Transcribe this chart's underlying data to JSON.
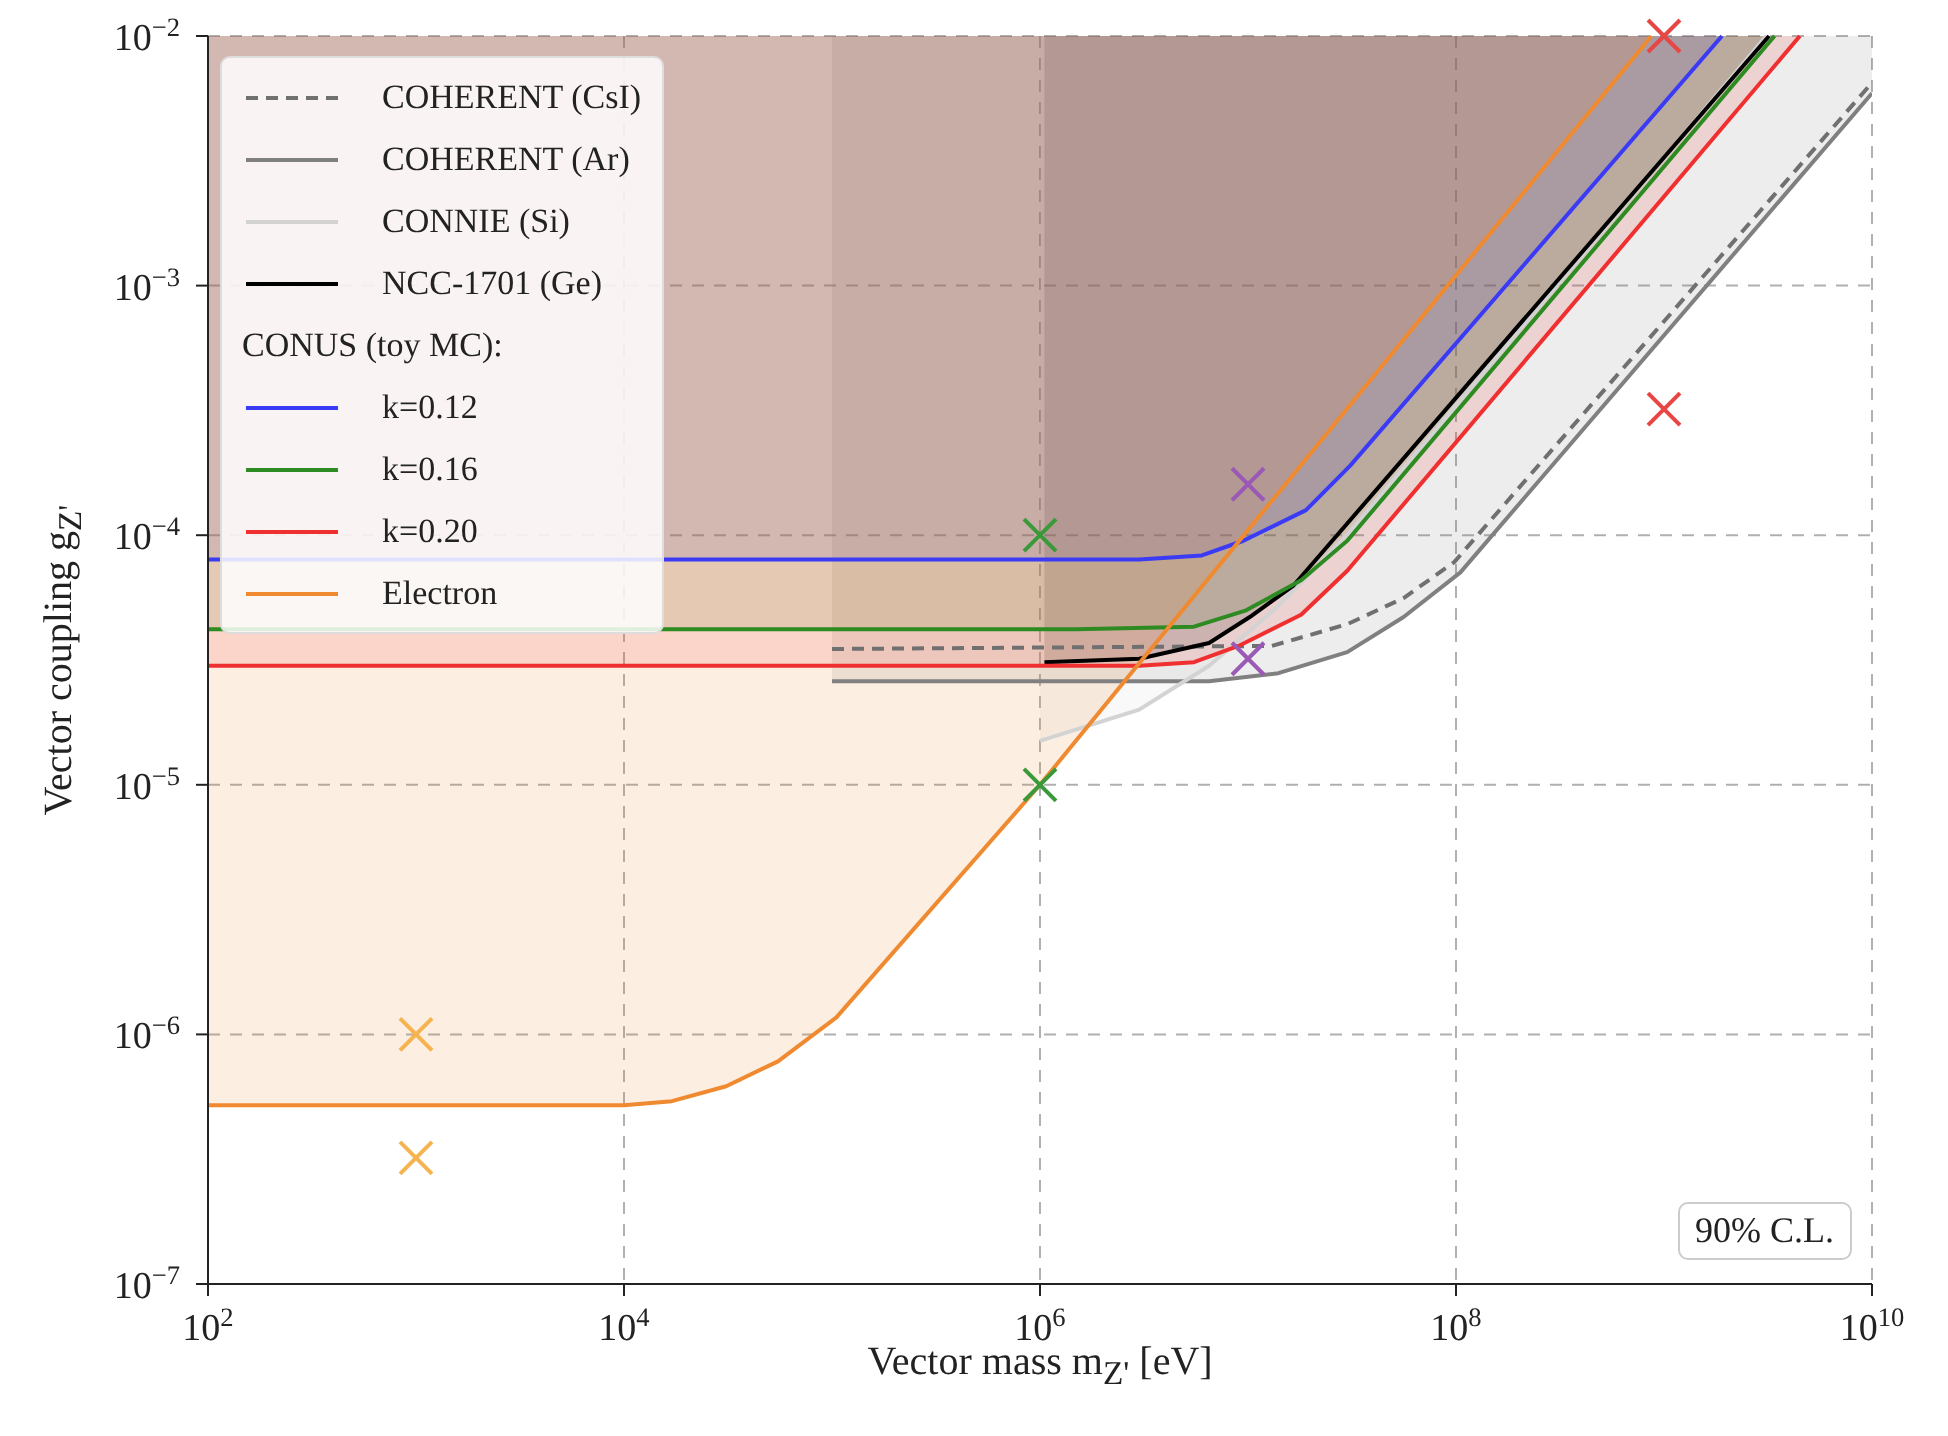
{
  "chart_data": {
    "type": "line",
    "xlabel": "Vector mass m$_{Z'}$ [eV]",
    "ylabel": "Vector coupling g$_{Z'}$",
    "legend_title": "CONUS (toy MC):",
    "log": "xy",
    "grid": true,
    "legend": "top left",
    "xlim": [
      100,
      10000000000
    ],
    "ylim": [
      1e-07,
      0.01
    ],
    "xticks": [
      {
        "value": 100,
        "label": "10$^{2}$"
      },
      {
        "value": 10000,
        "label": "10$^{4}$"
      },
      {
        "value": 1000000,
        "label": "10$^{6}$"
      },
      {
        "value": 100000000,
        "label": "10$^{8}$"
      },
      {
        "value": 10000000000,
        "label": "10$^{10}$"
      }
    ],
    "yticks": [
      {
        "value": 1e-07,
        "label": "10$^{−7}$"
      },
      {
        "value": 1e-06,
        "label": "10$^{−6}$"
      },
      {
        "value": 1e-05,
        "label": "10$^{−5}$"
      },
      {
        "value": 0.0001,
        "label": "10$^{−4}$"
      },
      {
        "value": 0.001,
        "label": "10$^{−3}$"
      },
      {
        "value": 0.01,
        "label": "10$^{−2}$"
      }
    ],
    "annotations": [
      "90% C.L."
    ],
    "series": [
      {
        "name": "COHERENT (CsI)",
        "color": "#707070",
        "line_style": "dashed",
        "x": [
          100000,
          13000000,
          30000000,
          56000000,
          98000000,
          10000000000
        ],
        "values": [
          3.5e-05,
          3.6e-05,
          4.4e-05,
          5.6e-05,
          7.8e-05,
          0.0065
        ]
      },
      {
        "name": "COHERENT (Ar)",
        "color": "#808080",
        "x": [
          100000,
          6500000,
          14000000,
          30000000,
          56000000,
          105000000,
          10000000000
        ],
        "values": [
          2.6e-05,
          2.6e-05,
          2.8e-05,
          3.4e-05,
          4.7e-05,
          7.1e-05,
          0.0059
        ],
        "lower": [
          2.6e-05,
          2.6e-05,
          2.8e-05,
          3.4e-05,
          4.7e-05,
          7.1e-05,
          0.0059
        ],
        "upper": [
          0.01,
          0.01,
          0.01,
          0.01,
          0.01,
          0.01,
          0.01
        ]
      },
      {
        "name": "CONNIE (Si)",
        "color": "#d3d3d3",
        "x": [
          1000000,
          3000000,
          6500000,
          14000000,
          30000000,
          3100000000
        ],
        "values": [
          1.5e-05,
          2e-05,
          3e-05,
          5.2e-05,
          0.0001,
          0.01
        ],
        "lower": [
          1.5e-05,
          2e-05,
          3e-05,
          5.2e-05,
          0.0001,
          0.01
        ],
        "upper": [
          0.01,
          0.01,
          0.01,
          0.01,
          0.01,
          0.01
        ]
      },
      {
        "name": "NCC-1701 (Ge)",
        "color": "#000000",
        "x": [
          1050000,
          3000000,
          6500000,
          10200000,
          16600000,
          3200000000
        ],
        "values": [
          3.1e-05,
          3.2e-05,
          3.7e-05,
          4.7e-05,
          6.3e-05,
          0.01
        ],
        "lower": [
          3.1e-05,
          3.2e-05,
          3.7e-05,
          4.7e-05,
          6.3e-05,
          0.01
        ],
        "upper": [
          0.01,
          0.01,
          0.01,
          0.01,
          0.01,
          0.01
        ]
      },
      {
        "name": "k=0.12",
        "color": "#3b3bf5",
        "x": [
          100,
          3000000,
          6000000,
          9500000,
          19000000,
          31000000,
          1900000000
        ],
        "values": [
          8e-05,
          8e-05,
          8.3e-05,
          9.5e-05,
          0.000126,
          0.00019,
          0.01
        ],
        "lower": [
          8e-05,
          8e-05,
          8.3e-05,
          9.5e-05,
          0.000126,
          0.00019,
          0.01
        ],
        "upper": [
          0.01,
          0.01,
          0.01,
          0.01,
          0.01,
          0.01,
          0.01
        ]
      },
      {
        "name": "k=0.16",
        "color": "#2e8b22",
        "x": [
          100,
          1500000,
          5500000,
          9800000,
          18000000,
          30000000,
          3400000000
        ],
        "values": [
          4.2e-05,
          4.2e-05,
          4.3e-05,
          5e-05,
          6.6e-05,
          9.5e-05,
          0.01
        ],
        "lower": [
          4.2e-05,
          4.2e-05,
          4.3e-05,
          5e-05,
          6.6e-05,
          9.5e-05,
          0.01
        ],
        "upper": [
          0.01,
          0.01,
          0.01,
          0.01,
          0.01,
          0.01,
          0.01
        ]
      },
      {
        "name": "k=0.20",
        "color": "#f03030",
        "x": [
          100,
          3000000,
          5500000,
          9000000,
          18000000,
          30000000,
          4500000000
        ],
        "values": [
          3e-05,
          3e-05,
          3.1e-05,
          3.6e-05,
          4.8e-05,
          7.2e-05,
          0.01
        ],
        "lower": [
          3e-05,
          3e-05,
          3.1e-05,
          3.6e-05,
          4.8e-05,
          7.2e-05,
          0.01
        ],
        "upper": [
          0.01,
          0.01,
          0.01,
          0.01,
          0.01,
          0.01,
          0.01
        ]
      },
      {
        "name": "Electron",
        "color": "#f08a30",
        "x": [
          100,
          10000,
          17000,
          31000,
          55000,
          105000,
          1000000,
          870000000
        ],
        "values": [
          5.2e-07,
          5.2e-07,
          5.4e-07,
          6.2e-07,
          7.8e-07,
          1.17e-06,
          1e-05,
          0.01
        ],
        "lower": [
          5.2e-07,
          5.2e-07,
          5.4e-07,
          6.2e-07,
          7.8e-07,
          1.17e-06,
          1e-05,
          0.01
        ],
        "upper": [
          0.01,
          0.01,
          0.01,
          0.01,
          0.01,
          0.01,
          0.01,
          0.01
        ]
      },
      {
        "type": "scatter",
        "marker": "cross",
        "color": "#f5b450",
        "x": [
          1000,
          1000
        ],
        "values": [
          1e-06,
          3.2e-07
        ]
      },
      {
        "type": "scatter",
        "marker": "cross",
        "color": "#3a9a3a",
        "x": [
          1000000,
          1000000
        ],
        "values": [
          0.0001,
          1e-05
        ]
      },
      {
        "type": "scatter",
        "marker": "cross",
        "color": "#9b59b6",
        "x": [
          10000000,
          10000000
        ],
        "values": [
          0.00016,
          3.2e-05
        ]
      },
      {
        "type": "scatter",
        "marker": "cross",
        "color": "#e84545",
        "x": [
          1000000000,
          1000000000
        ],
        "values": [
          0.01,
          0.00032
        ]
      }
    ]
  }
}
